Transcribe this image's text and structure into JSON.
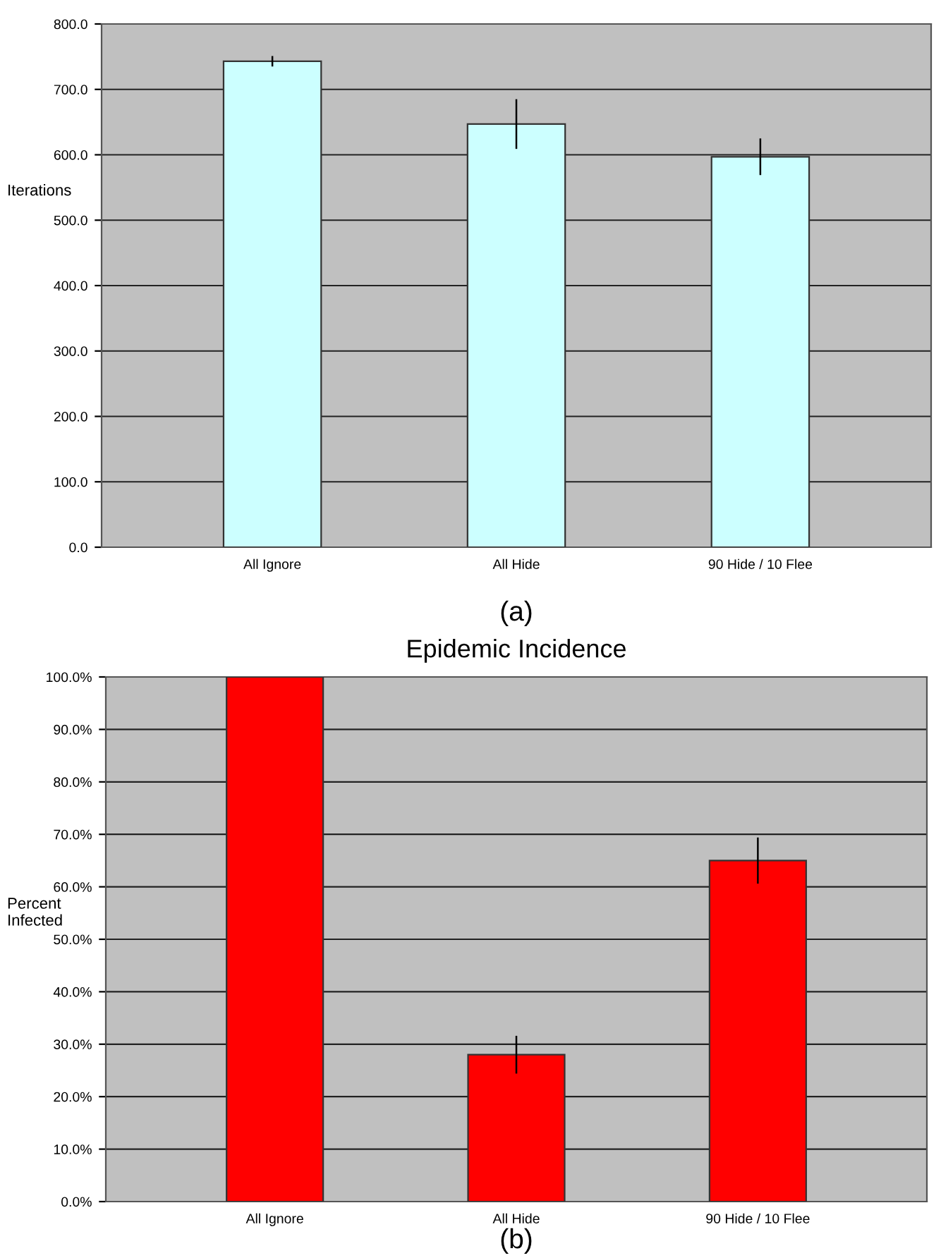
{
  "chart_data": [
    {
      "type": "bar",
      "ylabel": "Iterations",
      "categories": [
        "All Ignore",
        "All Hide",
        "90 Hide / 10 Flee"
      ],
      "values": [
        743,
        647,
        597
      ],
      "errors": [
        8,
        38,
        28
      ],
      "color": "#ccffff",
      "ylim": [
        0,
        800
      ],
      "yticks": [
        {
          "value": 0,
          "label": "0.0"
        },
        {
          "value": 100,
          "label": "100.0"
        },
        {
          "value": 200,
          "label": "200.0"
        },
        {
          "value": 300,
          "label": "300.0"
        },
        {
          "value": 400,
          "label": "400.0"
        },
        {
          "value": 500,
          "label": "500.0"
        },
        {
          "value": 600,
          "label": "600.0"
        },
        {
          "value": 700,
          "label": "700.0"
        },
        {
          "value": 800,
          "label": "800.0"
        }
      ],
      "grid": "y",
      "annotations": [
        "(a)"
      ]
    },
    {
      "type": "bar",
      "title": "Epidemic Incidence",
      "ylabel": "Percent\nInfected",
      "categories": [
        "All Ignore",
        "All Hide",
        "90 Hide / 10 Flee"
      ],
      "values": [
        100,
        28,
        65
      ],
      "errors": [
        null,
        3.6,
        4.4
      ],
      "color": "#ff0000",
      "ylim": [
        0,
        100
      ],
      "yticks": [
        {
          "value": 0,
          "label": "0.0%"
        },
        {
          "value": 10,
          "label": "10.0%"
        },
        {
          "value": 20,
          "label": "20.0%"
        },
        {
          "value": 30,
          "label": "30.0%"
        },
        {
          "value": 40,
          "label": "40.0%"
        },
        {
          "value": 50,
          "label": "50.0%"
        },
        {
          "value": 60,
          "label": "60.0%"
        },
        {
          "value": 70,
          "label": "70.0%"
        },
        {
          "value": 80,
          "label": "80.0%"
        },
        {
          "value": 90,
          "label": "90.0%"
        },
        {
          "value": 100,
          "label": "100.0%"
        }
      ],
      "grid": "y",
      "annotations": [
        "(b)"
      ]
    }
  ]
}
